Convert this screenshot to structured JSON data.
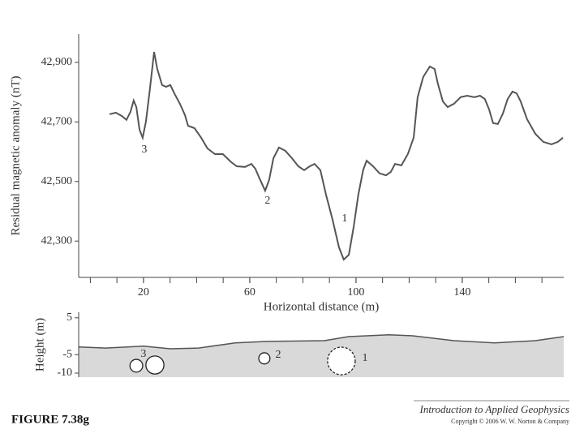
{
  "chart_data": [
    {
      "type": "line",
      "y_label": "Residual magnetic anomaly (nT)",
      "x_label": "Horizontal distance (m)",
      "color": "#555555",
      "x": [
        7.2,
        9.6,
        11.8,
        13.6,
        15.1,
        16.3,
        17.3,
        18.5,
        19.7,
        20.9,
        22.4,
        24.0,
        25.2,
        27.0,
        28.5,
        30.1,
        31.6,
        33.7,
        35.6,
        36.8,
        39.2,
        41.7,
        44.1,
        46.9,
        49.9,
        53.0,
        55.1,
        58.2,
        60.6,
        62.1,
        63.7,
        65.8,
        67.3,
        68.9,
        71.0,
        73.4,
        75.9,
        78.3,
        80.5,
        82.6,
        84.4,
        86.6,
        88.7,
        91.1,
        93.6,
        95.4,
        97.3,
        99.1,
        100.9,
        102.7,
        104.0,
        106.4,
        108.9,
        111.3,
        113.1,
        114.7,
        117.1,
        119.5,
        121.7,
        123.2,
        125.3,
        127.8,
        129.6,
        130.8,
        132.7,
        134.5,
        136.9,
        139.4,
        141.8,
        144.6,
        146.7,
        148.5,
        150.1,
        151.6,
        153.4,
        155.3,
        157.1,
        158.9,
        160.5,
        162.0,
        164.4,
        167.5,
        170.5,
        173.6,
        176.0,
        177.9
      ],
      "values": [
        42726,
        42731,
        42720,
        42707,
        42734,
        42772,
        42750,
        42674,
        42647,
        42701,
        42810,
        42935,
        42878,
        42824,
        42818,
        42824,
        42796,
        42761,
        42723,
        42687,
        42679,
        42647,
        42611,
        42592,
        42592,
        42565,
        42551,
        42549,
        42559,
        42543,
        42510,
        42469,
        42505,
        42578,
        42614,
        42603,
        42578,
        42551,
        42538,
        42551,
        42559,
        42538,
        42456,
        42374,
        42279,
        42238,
        42254,
        42347,
        42456,
        42538,
        42570,
        42551,
        42527,
        42521,
        42532,
        42559,
        42554,
        42592,
        42647,
        42783,
        42851,
        42886,
        42878,
        42829,
        42769,
        42750,
        42761,
        42783,
        42788,
        42783,
        42788,
        42777,
        42742,
        42696,
        42693,
        42728,
        42777,
        42802,
        42796,
        42769,
        42709,
        42660,
        42633,
        42625,
        42633,
        42647
      ],
      "xlim": [
        -4.4,
        178.2
      ],
      "ylim": [
        42178,
        42995
      ],
      "xticks": [
        20,
        60,
        100,
        140
      ],
      "xminor_ticks": [
        0,
        10,
        20,
        30,
        40,
        50,
        60,
        70,
        80,
        90,
        100,
        110,
        120,
        130,
        140,
        150,
        160,
        170
      ],
      "yticks": [
        {
          "value": 42300,
          "label": "42,300"
        },
        {
          "value": 42500,
          "label": "42,500"
        },
        {
          "value": 42700,
          "label": "42,700"
        },
        {
          "value": 42900,
          "label": "42,900"
        }
      ],
      "annotations": [
        {
          "text": "3",
          "x": 20.3,
          "y": 42606
        },
        {
          "text": "2",
          "x": 66.7,
          "y": 42434
        },
        {
          "text": "1",
          "x": 95.7,
          "y": 42374
        }
      ]
    },
    {
      "type": "area",
      "y_label": "Height (m)",
      "color": "#d9d9d9",
      "x": [
        -4.4,
        5.6,
        20,
        30.1,
        40.8,
        54.5,
        66.7,
        88.1,
        97.2,
        112.5,
        121.7,
        136.9,
        152.2,
        167.5,
        178.2
      ],
      "values": [
        -2.9,
        -3.2,
        -2.7,
        -3.4,
        -3.2,
        -1.8,
        -1.4,
        -1.2,
        -0.1,
        0.4,
        0.1,
        -1.2,
        -1.8,
        -1.2,
        -0.1
      ],
      "xlim": [
        -4.4,
        178.2
      ],
      "ylim": [
        -11.1,
        6.5
      ],
      "yticks": [
        -10,
        -5,
        5
      ],
      "bodies": [
        {
          "x": 17.3,
          "y": -8.0,
          "radius": 2.4
        },
        {
          "x": 24.3,
          "y": -7.8,
          "radius": 3.4
        },
        {
          "x": 65.5,
          "y": -6.0,
          "radius": 2.1
        },
        {
          "x": 94.5,
          "y": -6.7,
          "radius": 5.2,
          "line_style": "dashed"
        }
      ],
      "annotations": [
        {
          "text": "3",
          "x": 20,
          "y": -4.9
        },
        {
          "text": "2",
          "x": 70.7,
          "y": -5.1
        },
        {
          "text": "1",
          "x": 103.4,
          "y": -6.0
        }
      ]
    }
  ],
  "figure_label": "FIGURE 7.38g",
  "book_title": "Introduction to Applied Geophysics",
  "copyright": "Copyright © 2006 W. W. Norton & Company"
}
